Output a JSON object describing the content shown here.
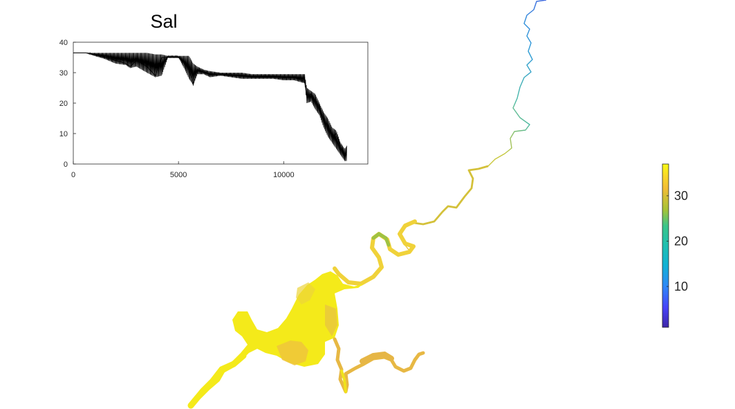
{
  "chart_data": {
    "type": "line",
    "title": "Sal",
    "xlabel": "",
    "ylabel": "",
    "xlim": [
      0,
      14000
    ],
    "ylim": [
      0,
      40
    ],
    "xticks": [
      0,
      5000,
      10000
    ],
    "yticks": [
      0,
      10,
      20,
      30,
      40
    ],
    "grid": false,
    "series": [
      {
        "color": "#000000",
        "x": [
          0,
          600,
          1000,
          1500,
          2000,
          2500,
          2700,
          3000,
          3500,
          3900,
          4200,
          4500,
          5000,
          5300,
          5500,
          5700,
          5900,
          6200,
          6500,
          7000,
          7500,
          8000,
          8500,
          9000,
          9500,
          10000,
          10500,
          11000,
          11100,
          11300,
          11500,
          11700,
          11900,
          12100,
          12300,
          12500,
          12700,
          12900,
          13000
        ],
        "y": [
          36.5,
          36.5,
          36,
          35,
          34,
          33,
          32,
          34,
          32,
          29,
          35,
          35,
          35,
          33,
          31,
          26,
          31,
          30,
          29.5,
          29.5,
          29,
          29,
          28.5,
          28.5,
          28.5,
          28.5,
          28.5,
          27,
          22,
          23,
          21,
          19,
          14,
          13,
          9,
          10,
          6,
          3,
          3
        ],
        "envelope_low": [
          36.5,
          36.5,
          35.5,
          34.5,
          33,
          32.5,
          31.5,
          32,
          30,
          28.5,
          29,
          35,
          35,
          31,
          28,
          26,
          29.5,
          29.5,
          28.5,
          29,
          28.5,
          28,
          28,
          28,
          28,
          27.5,
          27.5,
          26.5,
          20,
          20.5,
          18,
          16,
          12,
          9,
          7,
          5,
          3,
          1,
          1
        ],
        "envelope_high": [
          36.5,
          36.5,
          36.5,
          36.5,
          36.5,
          36.5,
          36.5,
          36.5,
          36.5,
          36,
          36,
          35.5,
          35.5,
          35.5,
          35.5,
          33,
          32,
          31,
          30.5,
          30,
          30,
          30,
          29.5,
          29.5,
          29.5,
          29.5,
          29.5,
          29.5,
          25,
          24,
          23,
          20,
          17,
          15,
          12,
          11,
          7,
          5,
          6
        ]
      }
    ],
    "colorbar": {
      "limits": [
        1,
        37
      ],
      "ticks": [
        "10",
        "20",
        "30"
      ],
      "tick_values": [
        10,
        20,
        30
      ],
      "colormap": "parula",
      "colors": [
        "#3e26a8",
        "#4743f8",
        "#2e87f7",
        "#12b2d4",
        "#3bc58a",
        "#a6c337",
        "#f2bd36",
        "#f9d92a",
        "#f9fb15"
      ]
    },
    "map": {
      "description_colors": {
        "upper_river": "#3d7fe0",
        "mid_river": "#47b8a6",
        "lower_river": "#e9c43a",
        "estuary": "#f5ed1a",
        "estuary_dark": "#eec83a"
      }
    }
  }
}
